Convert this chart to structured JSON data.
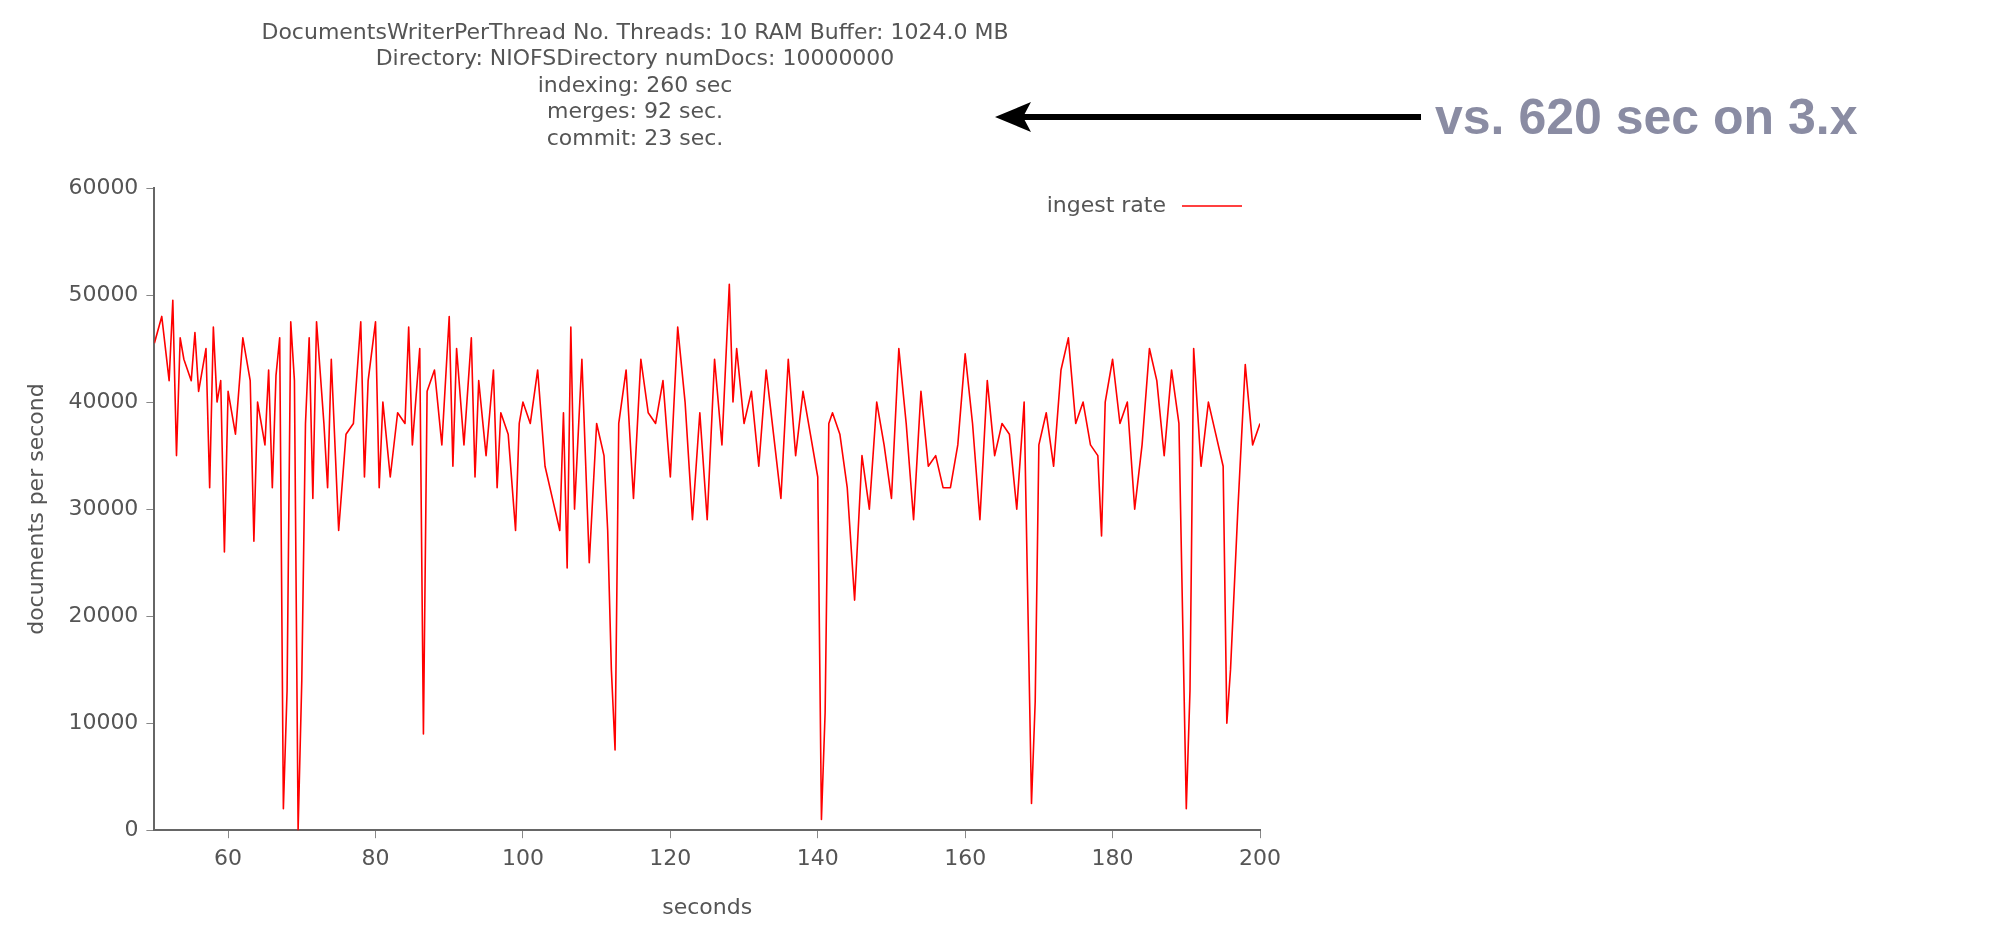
{
  "chart_data": {
    "type": "line",
    "title": "DocumentsWriterPerThread No. Threads: 10 RAM Buffer: 1024.0 MB\nDirectory: NIOFSDirectory numDocs: 10000000\nindexing: 260 sec\nmerges: 92 sec.\ncommit: 23 sec.",
    "xlabel": "seconds",
    "ylabel": "documents per second",
    "annotations": [
      "vs. 620 sec on 3.x"
    ],
    "legend": "top right",
    "grid": false,
    "marker": "none",
    "line_style": "solid",
    "xlim": [
      50,
      200
    ],
    "xticks": [
      60,
      80,
      100,
      120,
      140,
      160,
      180,
      200
    ],
    "ylim": [
      0,
      60000
    ],
    "yticks": [
      0,
      10000,
      20000,
      30000,
      40000,
      50000,
      60000
    ],
    "series": [
      {
        "name": "ingest rate",
        "color": "#ff0000",
        "x": [
          50,
          51,
          52,
          52.5,
          53,
          53.5,
          54,
          55,
          55.5,
          56,
          57,
          57.5,
          58,
          58.5,
          59,
          59.5,
          60,
          61,
          62,
          63,
          63.5,
          64,
          65,
          65.5,
          66,
          66.5,
          67,
          67.5,
          68,
          68.5,
          69,
          69.5,
          70,
          70.5,
          71,
          71.5,
          72,
          73,
          73.5,
          74,
          75,
          76,
          77,
          78,
          78.5,
          79,
          80,
          80.5,
          81,
          82,
          83,
          84,
          84.5,
          85,
          86,
          86.5,
          87,
          88,
          89,
          90,
          90.5,
          91,
          92,
          93,
          93.5,
          94,
          95,
          96,
          96.5,
          97,
          98,
          99,
          99.5,
          100,
          101,
          102,
          103,
          104,
          105,
          105.5,
          106,
          106.5,
          107,
          108,
          109,
          110,
          111,
          111.5,
          112,
          112.5,
          113,
          114,
          115,
          116,
          117,
          118,
          119,
          120,
          121,
          122,
          123,
          124,
          125,
          126,
          127,
          128,
          128.5,
          129,
          130,
          131,
          132,
          133,
          134,
          135,
          136,
          137,
          138,
          139,
          140,
          140.5,
          141,
          141.5,
          142,
          143,
          144,
          145,
          146,
          147,
          148,
          149,
          150,
          151,
          152,
          153,
          154,
          155,
          156,
          157,
          158,
          159,
          160,
          161,
          162,
          163,
          164,
          165,
          166,
          167,
          168,
          169,
          169.5,
          170,
          171,
          172,
          173,
          174,
          175,
          176,
          177,
          178,
          178.5,
          179,
          180,
          181,
          182,
          183,
          184,
          185,
          186,
          187,
          188,
          189,
          190,
          190.5,
          191,
          192,
          193,
          194,
          195,
          195.5,
          196,
          197,
          198,
          199,
          200
        ],
        "values": [
          45500,
          48000,
          42000,
          49500,
          35000,
          46000,
          44000,
          42000,
          46500,
          41000,
          45000,
          32000,
          47000,
          40000,
          42000,
          26000,
          41000,
          37000,
          46000,
          42000,
          27000,
          40000,
          36000,
          43000,
          32000,
          42500,
          46000,
          2000,
          13000,
          47500,
          42000,
          0,
          14000,
          38000,
          46000,
          31000,
          47500,
          38000,
          32000,
          44000,
          28000,
          37000,
          38000,
          47500,
          33000,
          42000,
          47500,
          32000,
          40000,
          33000,
          39000,
          38000,
          47000,
          36000,
          45000,
          9000,
          41000,
          43000,
          36000,
          48000,
          34000,
          45000,
          36000,
          46000,
          33000,
          42000,
          35000,
          43000,
          32000,
          39000,
          37000,
          28000,
          38000,
          40000,
          38000,
          43000,
          34000,
          31000,
          28000,
          39000,
          24500,
          47000,
          30000,
          44000,
          25000,
          38000,
          35000,
          28000,
          15000,
          7500,
          38000,
          43000,
          31000,
          44000,
          39000,
          38000,
          42000,
          33000,
          47000,
          40000,
          29000,
          39000,
          29000,
          44000,
          36000,
          51000,
          40000,
          45000,
          38000,
          41000,
          34000,
          43000,
          37000,
          31000,
          44000,
          35000,
          41000,
          37000,
          33000,
          1000,
          11000,
          38000,
          39000,
          37000,
          32000,
          21500,
          35000,
          30000,
          40000,
          36000,
          31000,
          45000,
          38000,
          29000,
          41000,
          34000,
          35000,
          32000,
          32000,
          36000,
          44500,
          38000,
          29000,
          42000,
          35000,
          38000,
          37000,
          30000,
          40000,
          2500,
          12000,
          36000,
          39000,
          34000,
          43000,
          46000,
          38000,
          40000,
          36000,
          35000,
          27500,
          40000,
          44000,
          38000,
          40000,
          30000,
          36000,
          45000,
          42000,
          35000,
          43000,
          38000,
          2000,
          13000,
          45000,
          34000,
          40000,
          37000,
          34000,
          10000,
          15000,
          30000,
          43500,
          36000,
          38000
        ]
      }
    ]
  }
}
